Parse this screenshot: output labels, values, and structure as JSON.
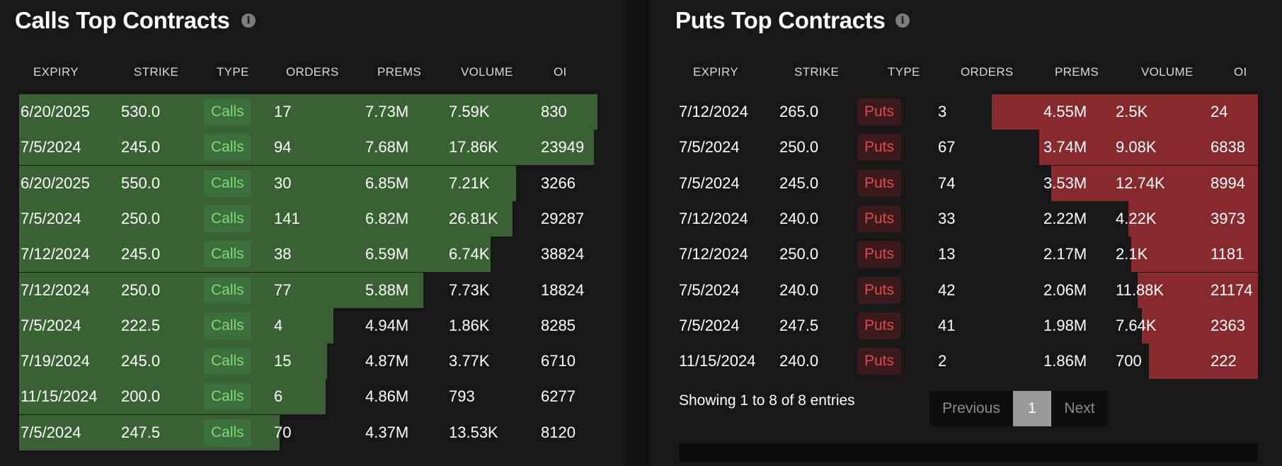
{
  "calls": {
    "title": "Calls Top Contracts",
    "headers": [
      "EXPIRY",
      "STRIKE",
      "TYPE",
      "ORDERS",
      "PREMS",
      "VOLUME",
      "OI"
    ],
    "bar_color": "#396134",
    "rows": [
      {
        "expiry": "6/20/2025",
        "strike": "530.0",
        "type": "Calls",
        "orders": "17",
        "prems": "7.73M",
        "volume": "7.59K",
        "oi": "830",
        "prems_level": 1.0
      },
      {
        "expiry": "7/5/2024",
        "strike": "245.0",
        "type": "Calls",
        "orders": "94",
        "prems": "7.68M",
        "volume": "17.86K",
        "oi": "23949",
        "prems_level": 0.994
      },
      {
        "expiry": "6/20/2025",
        "strike": "550.0",
        "type": "Calls",
        "orders": "30",
        "prems": "6.85M",
        "volume": "7.21K",
        "oi": "3266",
        "prems_level": 0.859
      },
      {
        "expiry": "7/5/2024",
        "strike": "250.0",
        "type": "Calls",
        "orders": "141",
        "prems": "6.82M",
        "volume": "26.81K",
        "oi": "29287",
        "prems_level": 0.853
      },
      {
        "expiry": "7/12/2024",
        "strike": "245.0",
        "type": "Calls",
        "orders": "38",
        "prems": "6.59M",
        "volume": "6.74K",
        "oi": "38824",
        "prems_level": 0.815
      },
      {
        "expiry": "7/12/2024",
        "strike": "250.0",
        "type": "Calls",
        "orders": "77",
        "prems": "5.88M",
        "volume": "7.73K",
        "oi": "18824",
        "prems_level": 0.699
      },
      {
        "expiry": "7/5/2024",
        "strike": "222.5",
        "type": "Calls",
        "orders": "4",
        "prems": "4.94M",
        "volume": "1.86K",
        "oi": "8285",
        "prems_level": 0.544
      },
      {
        "expiry": "7/19/2024",
        "strike": "245.0",
        "type": "Calls",
        "orders": "15",
        "prems": "4.87M",
        "volume": "3.77K",
        "oi": "6710",
        "prems_level": 0.533
      },
      {
        "expiry": "11/15/2024",
        "strike": "200.0",
        "type": "Calls",
        "orders": "6",
        "prems": "4.86M",
        "volume": "793",
        "oi": "6277",
        "prems_level": 0.53
      },
      {
        "expiry": "7/5/2024",
        "strike": "247.5",
        "type": "Calls",
        "orders": "70",
        "prems": "4.37M",
        "volume": "13.53K",
        "oi": "8120",
        "prems_level": 0.45
      }
    ]
  },
  "puts": {
    "title": "Puts Top Contracts",
    "headers": [
      "EXPIRY",
      "STRIKE",
      "TYPE",
      "ORDERS",
      "PREMS",
      "VOLUME",
      "OI"
    ],
    "bar_color": "#862a2e",
    "rows": [
      {
        "expiry": "7/12/2024",
        "strike": "265.0",
        "type": "Puts",
        "orders": "3",
        "prems": "4.55M",
        "volume": "2.5K",
        "oi": "24",
        "prems_level": 1.0
      },
      {
        "expiry": "7/5/2024",
        "strike": "250.0",
        "type": "Puts",
        "orders": "67",
        "prems": "3.74M",
        "volume": "9.08K",
        "oi": "6838",
        "prems_level": 0.822
      },
      {
        "expiry": "7/5/2024",
        "strike": "245.0",
        "type": "Puts",
        "orders": "74",
        "prems": "3.53M",
        "volume": "12.74K",
        "oi": "8994",
        "prems_level": 0.776
      },
      {
        "expiry": "7/12/2024",
        "strike": "240.0",
        "type": "Puts",
        "orders": "33",
        "prems": "2.22M",
        "volume": "4.22K",
        "oi": "3973",
        "prems_level": 0.488
      },
      {
        "expiry": "7/12/2024",
        "strike": "250.0",
        "type": "Puts",
        "orders": "13",
        "prems": "2.17M",
        "volume": "2.1K",
        "oi": "1181",
        "prems_level": 0.477
      },
      {
        "expiry": "7/5/2024",
        "strike": "240.0",
        "type": "Puts",
        "orders": "42",
        "prems": "2.06M",
        "volume": "11.88K",
        "oi": "21174",
        "prems_level": 0.453
      },
      {
        "expiry": "7/5/2024",
        "strike": "247.5",
        "type": "Puts",
        "orders": "41",
        "prems": "1.98M",
        "volume": "7.64K",
        "oi": "2363",
        "prems_level": 0.435
      },
      {
        "expiry": "11/15/2024",
        "strike": "240.0",
        "type": "Puts",
        "orders": "2",
        "prems": "1.86M",
        "volume": "700",
        "oi": "222",
        "prems_level": 0.409
      }
    ],
    "showing": "Showing 1 to 8 of 8 entries",
    "pagination": {
      "previous": "Previous",
      "current": "1",
      "next": "Next"
    }
  }
}
